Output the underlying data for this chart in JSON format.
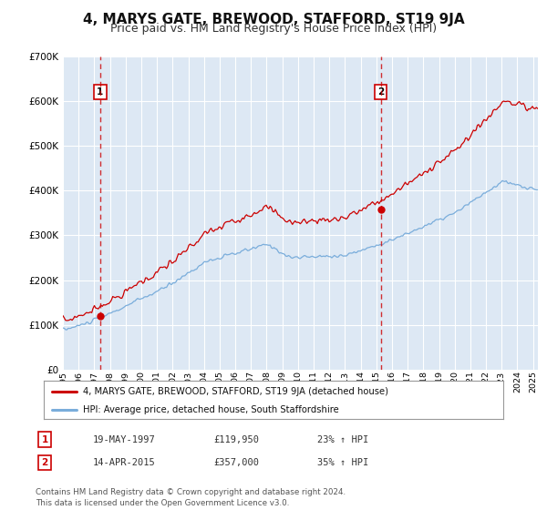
{
  "title": "4, MARYS GATE, BREWOOD, STAFFORD, ST19 9JA",
  "subtitle": "Price paid vs. HM Land Registry's House Price Index (HPI)",
  "xlim": [
    1995.0,
    2025.3
  ],
  "ylim": [
    0,
    700000
  ],
  "yticks": [
    0,
    100000,
    200000,
    300000,
    400000,
    500000,
    600000,
    700000
  ],
  "ytick_labels": [
    "£0",
    "£100K",
    "£200K",
    "£300K",
    "£400K",
    "£500K",
    "£600K",
    "£700K"
  ],
  "bg_color": "#dde8f4",
  "grid_color": "#ffffff",
  "red_line_color": "#cc0000",
  "blue_line_color": "#7aaddb",
  "sale1_x": 1997.38,
  "sale1_y": 119950,
  "sale1_label": "1",
  "sale1_date": "19-MAY-1997",
  "sale1_price": "£119,950",
  "sale1_hpi": "23% ↑ HPI",
  "sale2_x": 2015.28,
  "sale2_y": 357000,
  "sale2_label": "2",
  "sale2_date": "14-APR-2015",
  "sale2_price": "£357,000",
  "sale2_hpi": "35% ↑ HPI",
  "legend_label_red": "4, MARYS GATE, BREWOOD, STAFFORD, ST19 9JA (detached house)",
  "legend_label_blue": "HPI: Average price, detached house, South Staffordshire",
  "footer_text": "Contains HM Land Registry data © Crown copyright and database right 2024.\nThis data is licensed under the Open Government Licence v3.0.",
  "title_fontsize": 11,
  "subtitle_fontsize": 9
}
